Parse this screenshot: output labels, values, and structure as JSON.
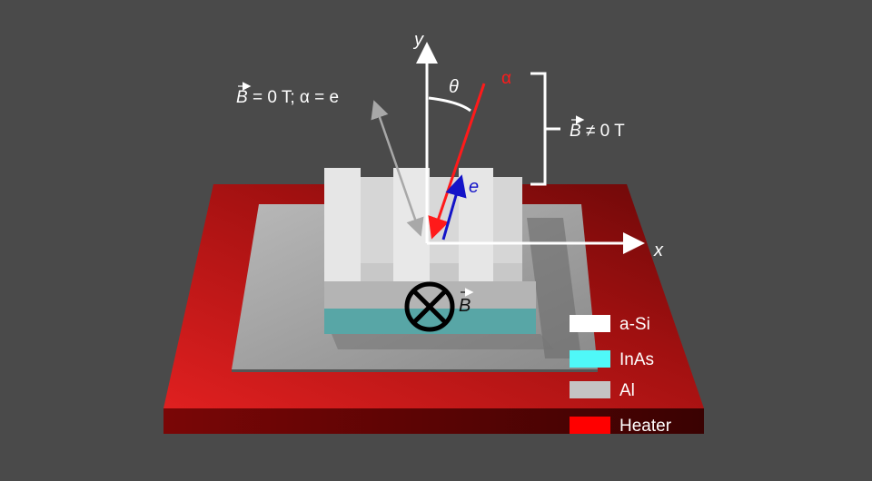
{
  "labels": {
    "y_axis": "y",
    "x_axis": "x",
    "theta": "θ",
    "alpha": "α",
    "electron": "e",
    "field_off_B": "B",
    "field_off_rest": " = 0 T; α = e",
    "field_on_B": "B",
    "field_on_rest": " ≠ 0 T",
    "field_into_page": "B"
  },
  "legend": [
    {
      "label": "a-Si",
      "color": "#ffffff"
    },
    {
      "label": "InAs",
      "color": "#4ff8f8"
    },
    {
      "label": "Al",
      "color": "#c4c4c4"
    },
    {
      "label": "Heater",
      "color": "#ff0000"
    }
  ],
  "colors": {
    "background": "#4a4a4a",
    "alpha_arrow": "#ff1a1a",
    "electron_arrow": "#1414c8",
    "zero_field_arrow": "#a8a8a8"
  }
}
